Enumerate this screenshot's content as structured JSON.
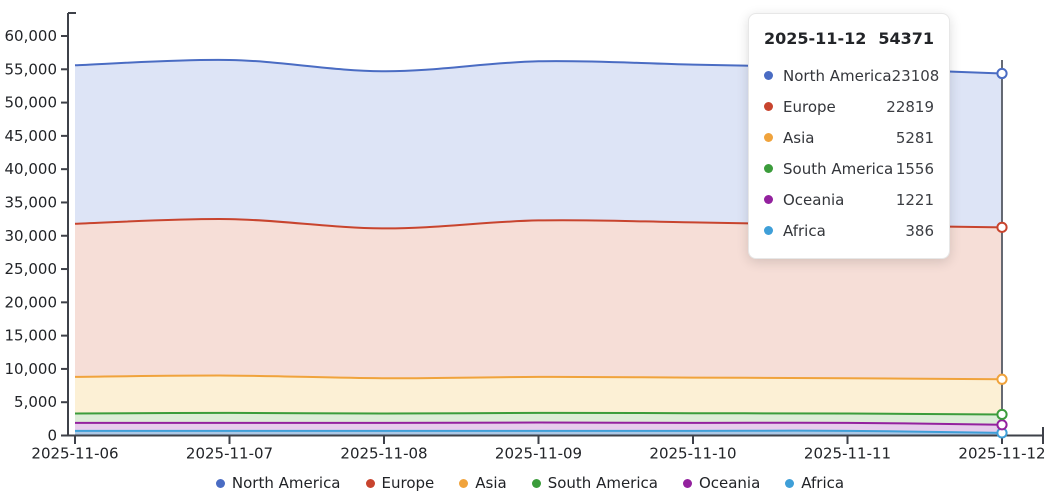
{
  "chart_data": {
    "type": "area",
    "stacked": true,
    "title": "",
    "xlabel": "",
    "ylabel": "",
    "x": [
      "2025-11-06",
      "2025-11-07",
      "2025-11-08",
      "2025-11-09",
      "2025-11-10",
      "2025-11-11",
      "2025-11-12"
    ],
    "series": [
      {
        "name": "North America",
        "color": "#4a6cc3",
        "fill": "#dde4f6",
        "values": [
          23800,
          23900,
          23600,
          23900,
          23700,
          23600,
          23108
        ]
      },
      {
        "name": "Europe",
        "color": "#c8442e",
        "fill": "#f6ded7",
        "values": [
          23000,
          23500,
          22500,
          23500,
          23300,
          23000,
          22819
        ]
      },
      {
        "name": "Asia",
        "color": "#f0a33c",
        "fill": "#fcf0d5",
        "values": [
          5500,
          5600,
          5300,
          5400,
          5350,
          5300,
          5281
        ]
      },
      {
        "name": "South America",
        "color": "#3b9c3b",
        "fill": "#dcedd7",
        "values": [
          1400,
          1500,
          1400,
          1450,
          1450,
          1400,
          1556
        ]
      },
      {
        "name": "Oceania",
        "color": "#93219e",
        "fill": "#e7cdec",
        "values": [
          1200,
          1200,
          1200,
          1250,
          1200,
          1200,
          1221
        ]
      },
      {
        "name": "Africa",
        "color": "#3f9fd8",
        "fill": "#abc8e6",
        "values": [
          700,
          700,
          700,
          700,
          700,
          700,
          386
        ]
      }
    ],
    "stack_order_bottom_to_top": [
      "Africa",
      "Oceania",
      "South America",
      "Asia",
      "Europe",
      "North America"
    ],
    "ylim": [
      0,
      60000
    ],
    "ytick_labels": [
      "0",
      "5,000",
      "10,000",
      "15,000",
      "20,000",
      "25,000",
      "30,000",
      "35,000",
      "40,000",
      "45,000",
      "50,000",
      "55,000",
      "60,000"
    ],
    "grid": false,
    "legend_position": "bottom",
    "highlight_index": 6
  },
  "tooltip": {
    "date": "2025-11-12",
    "total": "54371",
    "rows": [
      {
        "name": "North America",
        "value": "23108"
      },
      {
        "name": "Europe",
        "value": "22819"
      },
      {
        "name": "Asia",
        "value": "5281"
      },
      {
        "name": "South America",
        "value": "1556"
      },
      {
        "name": "Oceania",
        "value": "1221"
      },
      {
        "name": "Africa",
        "value": "386"
      }
    ]
  },
  "style": {
    "axis_color": "#3e4149",
    "crosshair_color": "#555a64",
    "label_color": "#222428"
  }
}
